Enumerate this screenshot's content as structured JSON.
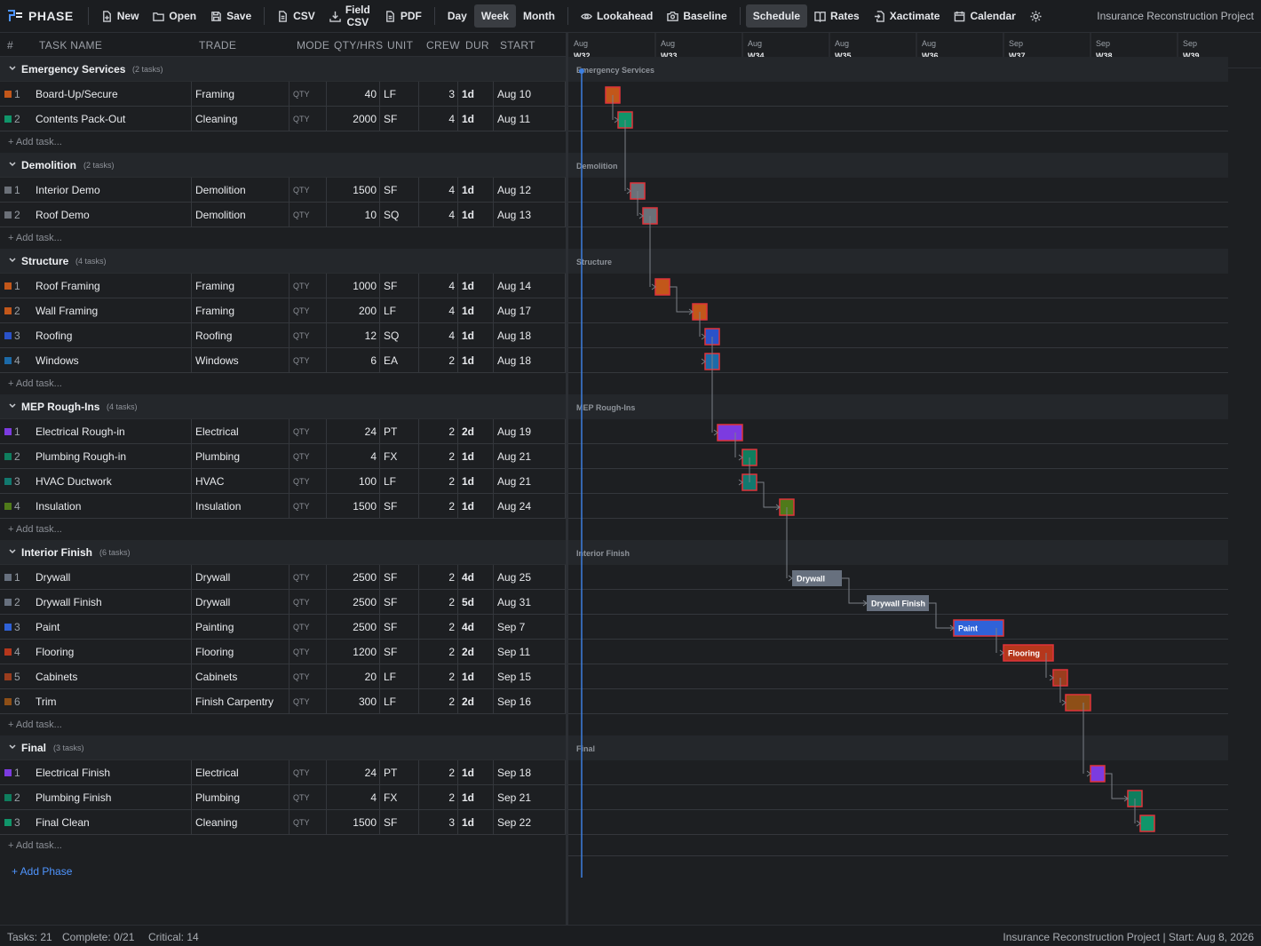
{
  "app": {
    "name": "PHASE"
  },
  "toolbar": {
    "file": [
      {
        "label": "New",
        "icon": "new-file-icon"
      },
      {
        "label": "Open",
        "icon": "folder-open-icon"
      },
      {
        "label": "Save",
        "icon": "save-icon"
      }
    ],
    "export": [
      {
        "label": "CSV",
        "icon": "csv-file-icon"
      },
      {
        "label_line1": "Field",
        "label_line2": "CSV",
        "icon": "download-icon"
      },
      {
        "label": "PDF",
        "icon": "pdf-file-icon"
      }
    ],
    "views": [
      {
        "label": "Day",
        "active": false
      },
      {
        "label": "Week",
        "active": true
      },
      {
        "label": "Month",
        "active": false
      }
    ],
    "tools": [
      {
        "label": "Lookahead",
        "icon": "eye-icon"
      },
      {
        "label": "Baseline",
        "icon": "camera-icon"
      }
    ],
    "modes": [
      {
        "label": "Schedule",
        "icon": "",
        "active": true
      },
      {
        "label": "Rates",
        "icon": "book-icon",
        "active": false
      },
      {
        "label": "Xactimate",
        "icon": "import-file-icon",
        "active": false
      },
      {
        "label": "Calendar",
        "icon": "calendar-icon",
        "active": false
      }
    ],
    "theme_icon": "sun-icon",
    "project_title": "Insurance Reconstruction Project"
  },
  "columns": {
    "num": "#",
    "task_name": "TASK NAME",
    "trade": "TRADE",
    "mode": "MODE",
    "qty": "QTY/HRS",
    "unit": "UNIT",
    "crew": "CREW",
    "dur": "DUR",
    "start": "START"
  },
  "add_task_label": "+ Add task...",
  "add_phase_label": "+ Add Phase",
  "phases": [
    {
      "name": "Emergency Services",
      "count": "(2 tasks)",
      "tasks": [
        {
          "num": "1",
          "name": "Board-Up/Secure",
          "trade": "Framing",
          "mode": "QTY",
          "qty": "40",
          "unit": "LF",
          "crew": "3",
          "dur": "1d",
          "start": "Aug 10",
          "color": "#c2571a"
        },
        {
          "num": "2",
          "name": "Contents Pack-Out",
          "trade": "Cleaning",
          "mode": "QTY",
          "qty": "2000",
          "unit": "SF",
          "crew": "4",
          "dur": "1d",
          "start": "Aug 11",
          "color": "#10956a"
        }
      ]
    },
    {
      "name": "Demolition",
      "count": "(2 tasks)",
      "tasks": [
        {
          "num": "1",
          "name": "Interior Demo",
          "trade": "Demolition",
          "mode": "QTY",
          "qty": "1500",
          "unit": "SF",
          "crew": "4",
          "dur": "1d",
          "start": "Aug 12",
          "color": "#6b7078"
        },
        {
          "num": "2",
          "name": "Roof Demo",
          "trade": "Demolition",
          "mode": "QTY",
          "qty": "10",
          "unit": "SQ",
          "crew": "4",
          "dur": "1d",
          "start": "Aug 13",
          "color": "#6b7078"
        }
      ]
    },
    {
      "name": "Structure",
      "count": "(4 tasks)",
      "tasks": [
        {
          "num": "1",
          "name": "Roof Framing",
          "trade": "Framing",
          "mode": "QTY",
          "qty": "1000",
          "unit": "SF",
          "crew": "4",
          "dur": "1d",
          "start": "Aug 14",
          "color": "#c2571a"
        },
        {
          "num": "2",
          "name": "Wall Framing",
          "trade": "Framing",
          "mode": "QTY",
          "qty": "200",
          "unit": "LF",
          "crew": "4",
          "dur": "1d",
          "start": "Aug 17",
          "color": "#c2571a"
        },
        {
          "num": "3",
          "name": "Roofing",
          "trade": "Roofing",
          "mode": "QTY",
          "qty": "12",
          "unit": "SQ",
          "crew": "4",
          "dur": "1d",
          "start": "Aug 18",
          "color": "#2a52c9"
        },
        {
          "num": "4",
          "name": "Windows",
          "trade": "Windows",
          "mode": "QTY",
          "qty": "6",
          "unit": "EA",
          "crew": "2",
          "dur": "1d",
          "start": "Aug 18",
          "color": "#1c6aa8"
        }
      ]
    },
    {
      "name": "MEP Rough-Ins",
      "count": "(4 tasks)",
      "tasks": [
        {
          "num": "1",
          "name": "Electrical Rough-in",
          "trade": "Electrical",
          "mode": "QTY",
          "qty": "24",
          "unit": "PT",
          "crew": "2",
          "dur": "2d",
          "start": "Aug 19",
          "color": "#7c3be0"
        },
        {
          "num": "2",
          "name": "Plumbing Rough-in",
          "trade": "Plumbing",
          "mode": "QTY",
          "qty": "4",
          "unit": "FX",
          "crew": "2",
          "dur": "1d",
          "start": "Aug 21",
          "color": "#0f7e5e"
        },
        {
          "num": "3",
          "name": "HVAC Ductwork",
          "trade": "HVAC",
          "mode": "QTY",
          "qty": "100",
          "unit": "LF",
          "crew": "2",
          "dur": "1d",
          "start": "Aug 21",
          "color": "#12796f"
        },
        {
          "num": "4",
          "name": "Insulation",
          "trade": "Insulation",
          "mode": "QTY",
          "qty": "1500",
          "unit": "SF",
          "crew": "2",
          "dur": "1d",
          "start": "Aug 24",
          "color": "#4f7a1a"
        }
      ]
    },
    {
      "name": "Interior Finish",
      "count": "(6 tasks)",
      "tasks": [
        {
          "num": "1",
          "name": "Drywall",
          "trade": "Drywall",
          "mode": "QTY",
          "qty": "2500",
          "unit": "SF",
          "crew": "2",
          "dur": "4d",
          "start": "Aug 25",
          "color": "#67707e"
        },
        {
          "num": "2",
          "name": "Drywall Finish",
          "trade": "Drywall",
          "mode": "QTY",
          "qty": "2500",
          "unit": "SF",
          "crew": "2",
          "dur": "5d",
          "start": "Aug 31",
          "color": "#67707e"
        },
        {
          "num": "3",
          "name": "Paint",
          "trade": "Painting",
          "mode": "QTY",
          "qty": "2500",
          "unit": "SF",
          "crew": "2",
          "dur": "4d",
          "start": "Sep 7",
          "color": "#2f62d8"
        },
        {
          "num": "4",
          "name": "Flooring",
          "trade": "Flooring",
          "mode": "QTY",
          "qty": "1200",
          "unit": "SF",
          "crew": "2",
          "dur": "2d",
          "start": "Sep 11",
          "color": "#b5371c"
        },
        {
          "num": "5",
          "name": "Cabinets",
          "trade": "Cabinets",
          "mode": "QTY",
          "qty": "20",
          "unit": "LF",
          "crew": "2",
          "dur": "1d",
          "start": "Sep 15",
          "color": "#9a3d1e"
        },
        {
          "num": "6",
          "name": "Trim",
          "trade": "Finish Carpentry",
          "mode": "QTY",
          "qty": "300",
          "unit": "LF",
          "crew": "2",
          "dur": "2d",
          "start": "Sep 16",
          "color": "#8e4f17"
        }
      ]
    },
    {
      "name": "Final",
      "count": "(3 tasks)",
      "tasks": [
        {
          "num": "1",
          "name": "Electrical Finish",
          "trade": "Electrical",
          "mode": "QTY",
          "qty": "24",
          "unit": "PT",
          "crew": "2",
          "dur": "1d",
          "start": "Sep 18",
          "color": "#7c3be0"
        },
        {
          "num": "2",
          "name": "Plumbing Finish",
          "trade": "Plumbing",
          "mode": "QTY",
          "qty": "4",
          "unit": "FX",
          "crew": "2",
          "dur": "1d",
          "start": "Sep 21",
          "color": "#0f7e5e"
        },
        {
          "num": "3",
          "name": "Final Clean",
          "trade": "Cleaning",
          "mode": "QTY",
          "qty": "1500",
          "unit": "SF",
          "crew": "3",
          "dur": "1d",
          "start": "Sep 22",
          "color": "#10956a"
        }
      ]
    }
  ],
  "gantt": {
    "weeks": [
      {
        "month": "Aug",
        "week": "W32"
      },
      {
        "month": "Aug",
        "week": "W33"
      },
      {
        "month": "Aug",
        "week": "W34"
      },
      {
        "month": "Aug",
        "week": "W35"
      },
      {
        "month": "Aug",
        "week": "W36"
      },
      {
        "month": "Sep",
        "week": "W37"
      },
      {
        "month": "Sep",
        "week": "W38"
      },
      {
        "month": "Sep",
        "week": "W39"
      }
    ],
    "bar_labels": {
      "Drywall": "Drywall",
      "Drywall Finish": "Drywall Finish",
      "Paint": "Paint",
      "Flooring": "Flooring"
    }
  },
  "status": {
    "tasks": "Tasks: 21",
    "complete": "Complete: 0/21",
    "critical": "Critical: 14",
    "project": "Insurance Reconstruction Project | Start: Aug 8, 2026"
  },
  "colors": {
    "accent": "#4f95ff",
    "critical_border": "#e0333a",
    "today_line": "#3d7fe0"
  }
}
